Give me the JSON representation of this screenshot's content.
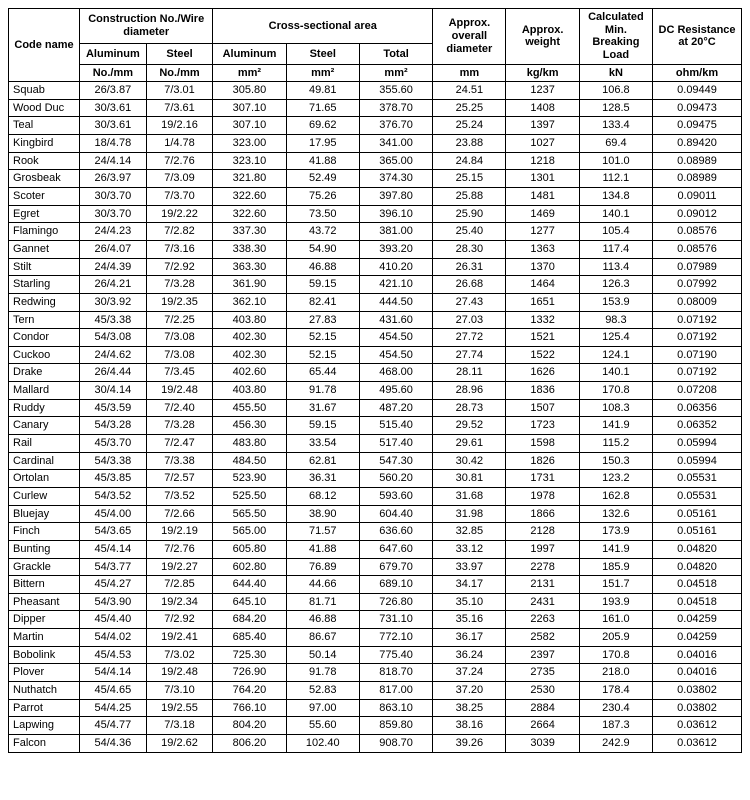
{
  "headers": {
    "code_name": "Code name",
    "construction": "Construction No./Wire diameter",
    "cross_section": "Cross-sectional area",
    "aluminum": "Aluminum",
    "steel": "Steel",
    "total": "Total",
    "overall_diameter": "Approx. overall diameter",
    "weight": "Approx. weight",
    "breaking_load": "Calculated Min. Breaking Load",
    "dc_resistance": "DC Resistance at 20°C",
    "no_mm": "No./mm",
    "mm2": "mm²",
    "mm": "mm",
    "kg_km": "kg/km",
    "kN": "kN",
    "ohm_km": "ohm/km"
  },
  "rows": [
    {
      "name": "Squab",
      "al": "26/3.87",
      "st": "7/3.01",
      "a_al": "305.80",
      "a_st": "49.81",
      "a_tot": "355.60",
      "dia": "24.51",
      "wt": "1237",
      "bl": "106.8",
      "dc": "0.09449"
    },
    {
      "name": "Wood Duc",
      "al": "30/3.61",
      "st": "7/3.61",
      "a_al": "307.10",
      "a_st": "71.65",
      "a_tot": "378.70",
      "dia": "25.25",
      "wt": "1408",
      "bl": "128.5",
      "dc": "0.09473"
    },
    {
      "name": "Teal",
      "al": "30/3.61",
      "st": "19/2.16",
      "a_al": "307.10",
      "a_st": "69.62",
      "a_tot": "376.70",
      "dia": "25.24",
      "wt": "1397",
      "bl": "133.4",
      "dc": "0.09475"
    },
    {
      "name": "Kingbird",
      "al": "18/4.78",
      "st": "1/4.78",
      "a_al": "323.00",
      "a_st": "17.95",
      "a_tot": "341.00",
      "dia": "23.88",
      "wt": "1027",
      "bl": "69.4",
      "dc": "0.89420"
    },
    {
      "name": "Rook",
      "al": "24/4.14",
      "st": "7/2.76",
      "a_al": "323.10",
      "a_st": "41.88",
      "a_tot": "365.00",
      "dia": "24.84",
      "wt": "1218",
      "bl": "101.0",
      "dc": "0.08989"
    },
    {
      "name": "Grosbeak",
      "al": "26/3.97",
      "st": "7/3.09",
      "a_al": "321.80",
      "a_st": "52.49",
      "a_tot": "374.30",
      "dia": "25.15",
      "wt": "1301",
      "bl": "112.1",
      "dc": "0.08989"
    },
    {
      "name": "Scoter",
      "al": "30/3.70",
      "st": "7/3.70",
      "a_al": "322.60",
      "a_st": "75.26",
      "a_tot": "397.80",
      "dia": "25.88",
      "wt": "1481",
      "bl": "134.8",
      "dc": "0.09011"
    },
    {
      "name": "Egret",
      "al": "30/3.70",
      "st": "19/2.22",
      "a_al": "322.60",
      "a_st": "73.50",
      "a_tot": "396.10",
      "dia": "25.90",
      "wt": "1469",
      "bl": "140.1",
      "dc": "0.09012"
    },
    {
      "name": "Flamingo",
      "al": "24/4.23",
      "st": "7/2.82",
      "a_al": "337.30",
      "a_st": "43.72",
      "a_tot": "381.00",
      "dia": "25.40",
      "wt": "1277",
      "bl": "105.4",
      "dc": "0.08576"
    },
    {
      "name": "Gannet",
      "al": "26/4.07",
      "st": "7/3.16",
      "a_al": "338.30",
      "a_st": "54.90",
      "a_tot": "393.20",
      "dia": "28.30",
      "wt": "1363",
      "bl": "117.4",
      "dc": "0.08576"
    },
    {
      "name": "Stilt",
      "al": "24/4.39",
      "st": "7/2.92",
      "a_al": "363.30",
      "a_st": "46.88",
      "a_tot": "410.20",
      "dia": "26.31",
      "wt": "1370",
      "bl": "113.4",
      "dc": "0.07989"
    },
    {
      "name": "Starling",
      "al": "26/4.21",
      "st": "7/3.28",
      "a_al": "361.90",
      "a_st": "59.15",
      "a_tot": "421.10",
      "dia": "26.68",
      "wt": "1464",
      "bl": "126.3",
      "dc": "0.07992"
    },
    {
      "name": "Redwing",
      "al": "30/3.92",
      "st": "19/2.35",
      "a_al": "362.10",
      "a_st": "82.41",
      "a_tot": "444.50",
      "dia": "27.43",
      "wt": "1651",
      "bl": "153.9",
      "dc": "0.08009"
    },
    {
      "name": "Tern",
      "al": "45/3.38",
      "st": "7/2.25",
      "a_al": "403.80",
      "a_st": "27.83",
      "a_tot": "431.60",
      "dia": "27.03",
      "wt": "1332",
      "bl": "98.3",
      "dc": "0.07192"
    },
    {
      "name": "Condor",
      "al": "54/3.08",
      "st": "7/3.08",
      "a_al": "402.30",
      "a_st": "52.15",
      "a_tot": "454.50",
      "dia": "27.72",
      "wt": "1521",
      "bl": "125.4",
      "dc": "0.07192"
    },
    {
      "name": "Cuckoo",
      "al": "24/4.62",
      "st": "7/3.08",
      "a_al": "402.30",
      "a_st": "52.15",
      "a_tot": "454.50",
      "dia": "27.74",
      "wt": "1522",
      "bl": "124.1",
      "dc": "0.07190"
    },
    {
      "name": "Drake",
      "al": "26/4.44",
      "st": "7/3.45",
      "a_al": "402.60",
      "a_st": "65.44",
      "a_tot": "468.00",
      "dia": "28.11",
      "wt": "1626",
      "bl": "140.1",
      "dc": "0.07192"
    },
    {
      "name": "Mallard",
      "al": "30/4.14",
      "st": "19/2.48",
      "a_al": "403.80",
      "a_st": "91.78",
      "a_tot": "495.60",
      "dia": "28.96",
      "wt": "1836",
      "bl": "170.8",
      "dc": "0.07208"
    },
    {
      "name": "Ruddy",
      "al": "45/3.59",
      "st": "7/2.40",
      "a_al": "455.50",
      "a_st": "31.67",
      "a_tot": "487.20",
      "dia": "28.73",
      "wt": "1507",
      "bl": "108.3",
      "dc": "0.06356"
    },
    {
      "name": "Canary",
      "al": "54/3.28",
      "st": "7/3.28",
      "a_al": "456.30",
      "a_st": "59.15",
      "a_tot": "515.40",
      "dia": "29.52",
      "wt": "1723",
      "bl": "141.9",
      "dc": "0.06352"
    },
    {
      "name": "Rail",
      "al": "45/3.70",
      "st": "7/2.47",
      "a_al": "483.80",
      "a_st": "33.54",
      "a_tot": "517.40",
      "dia": "29.61",
      "wt": "1598",
      "bl": "115.2",
      "dc": "0.05994"
    },
    {
      "name": "Cardinal",
      "al": "54/3.38",
      "st": "7/3.38",
      "a_al": "484.50",
      "a_st": "62.81",
      "a_tot": "547.30",
      "dia": "30.42",
      "wt": "1826",
      "bl": "150.3",
      "dc": "0.05994"
    },
    {
      "name": "Ortolan",
      "al": "45/3.85",
      "st": "7/2.57",
      "a_al": "523.90",
      "a_st": "36.31",
      "a_tot": "560.20",
      "dia": "30.81",
      "wt": "1731",
      "bl": "123.2",
      "dc": "0.05531"
    },
    {
      "name": "Curlew",
      "al": "54/3.52",
      "st": "7/3.52",
      "a_al": "525.50",
      "a_st": "68.12",
      "a_tot": "593.60",
      "dia": "31.68",
      "wt": "1978",
      "bl": "162.8",
      "dc": "0.05531"
    },
    {
      "name": "Bluejay",
      "al": "45/4.00",
      "st": "7/2.66",
      "a_al": "565.50",
      "a_st": "38.90",
      "a_tot": "604.40",
      "dia": "31.98",
      "wt": "1866",
      "bl": "132.6",
      "dc": "0.05161"
    },
    {
      "name": "Finch",
      "al": "54/3.65",
      "st": "19/2.19",
      "a_al": "565.00",
      "a_st": "71.57",
      "a_tot": "636.60",
      "dia": "32.85",
      "wt": "2128",
      "bl": "173.9",
      "dc": "0.05161"
    },
    {
      "name": "Bunting",
      "al": "45/4.14",
      "st": "7/2.76",
      "a_al": "605.80",
      "a_st": "41.88",
      "a_tot": "647.60",
      "dia": "33.12",
      "wt": "1997",
      "bl": "141.9",
      "dc": "0.04820"
    },
    {
      "name": "Grackle",
      "al": "54/3.77",
      "st": "19/2.27",
      "a_al": "602.80",
      "a_st": "76.89",
      "a_tot": "679.70",
      "dia": "33.97",
      "wt": "2278",
      "bl": "185.9",
      "dc": "0.04820"
    },
    {
      "name": "Bittern",
      "al": "45/4.27",
      "st": "7/2.85",
      "a_al": "644.40",
      "a_st": "44.66",
      "a_tot": "689.10",
      "dia": "34.17",
      "wt": "2131",
      "bl": "151.7",
      "dc": "0.04518"
    },
    {
      "name": "Pheasant",
      "al": "54/3.90",
      "st": "19/2.34",
      "a_al": "645.10",
      "a_st": "81.71",
      "a_tot": "726.80",
      "dia": "35.10",
      "wt": "2431",
      "bl": "193.9",
      "dc": "0.04518"
    },
    {
      "name": "Dipper",
      "al": "45/4.40",
      "st": "7/2.92",
      "a_al": "684.20",
      "a_st": "46.88",
      "a_tot": "731.10",
      "dia": "35.16",
      "wt": "2263",
      "bl": "161.0",
      "dc": "0.04259"
    },
    {
      "name": "Martin",
      "al": "54/4.02",
      "st": "19/2.41",
      "a_al": "685.40",
      "a_st": "86.67",
      "a_tot": "772.10",
      "dia": "36.17",
      "wt": "2582",
      "bl": "205.9",
      "dc": "0.04259"
    },
    {
      "name": "Bobolink",
      "al": "45/4.53",
      "st": "7/3.02",
      "a_al": "725.30",
      "a_st": "50.14",
      "a_tot": "775.40",
      "dia": "36.24",
      "wt": "2397",
      "bl": "170.8",
      "dc": "0.04016"
    },
    {
      "name": "Plover",
      "al": "54/4.14",
      "st": "19/2.48",
      "a_al": "726.90",
      "a_st": "91.78",
      "a_tot": "818.70",
      "dia": "37.24",
      "wt": "2735",
      "bl": "218.0",
      "dc": "0.04016"
    },
    {
      "name": "Nuthatch",
      "al": "45/4.65",
      "st": "7/3.10",
      "a_al": "764.20",
      "a_st": "52.83",
      "a_tot": "817.00",
      "dia": "37.20",
      "wt": "2530",
      "bl": "178.4",
      "dc": "0.03802"
    },
    {
      "name": "Parrot",
      "al": "54/4.25",
      "st": "19/2.55",
      "a_al": "766.10",
      "a_st": "97.00",
      "a_tot": "863.10",
      "dia": "38.25",
      "wt": "2884",
      "bl": "230.4",
      "dc": "0.03802"
    },
    {
      "name": "Lapwing",
      "al": "45/4.77",
      "st": "7/3.18",
      "a_al": "804.20",
      "a_st": "55.60",
      "a_tot": "859.80",
      "dia": "38.16",
      "wt": "2664",
      "bl": "187.3",
      "dc": "0.03612"
    },
    {
      "name": "Falcon",
      "al": "54/4.36",
      "st": "19/2.62",
      "a_al": "806.20",
      "a_st": "102.40",
      "a_tot": "908.70",
      "dia": "39.26",
      "wt": "3039",
      "bl": "242.9",
      "dc": "0.03612"
    }
  ]
}
